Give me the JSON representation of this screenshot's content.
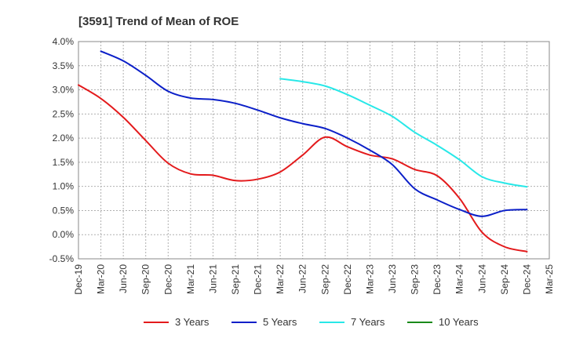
{
  "chart_data": {
    "type": "line",
    "title": "[3591]  Trend of Mean of ROE",
    "xlabel": "",
    "ylabel": "",
    "ylim": [
      -0.5,
      4.0
    ],
    "yticks": [
      -0.5,
      0.0,
      0.5,
      1.0,
      1.5,
      2.0,
      2.5,
      3.0,
      3.5,
      4.0
    ],
    "ytick_labels": [
      "-0.5%",
      "0.0%",
      "0.5%",
      "1.0%",
      "1.5%",
      "2.0%",
      "2.5%",
      "3.0%",
      "3.5%",
      "4.0%"
    ],
    "categories": [
      "Dec-19",
      "Mar-20",
      "Jun-20",
      "Sep-20",
      "Dec-20",
      "Mar-21",
      "Jun-21",
      "Sep-21",
      "Dec-21",
      "Mar-22",
      "Jun-22",
      "Sep-22",
      "Dec-22",
      "Mar-23",
      "Jun-23",
      "Sep-23",
      "Dec-23",
      "Mar-24",
      "Jun-24",
      "Sep-24",
      "Dec-24",
      "Mar-25"
    ],
    "grid": true,
    "legend_position": "bottom",
    "series": [
      {
        "name": "3 Years",
        "color": "#e31a1c",
        "values": [
          3.1,
          2.82,
          2.43,
          1.95,
          1.48,
          1.26,
          1.23,
          1.12,
          1.15,
          1.3,
          1.65,
          2.02,
          1.82,
          1.65,
          1.57,
          1.35,
          1.22,
          0.75,
          0.05,
          -0.25,
          -0.35,
          null
        ]
      },
      {
        "name": "5 Years",
        "color": "#0b1fc8",
        "values": [
          null,
          3.8,
          3.6,
          3.3,
          2.97,
          2.83,
          2.8,
          2.72,
          2.58,
          2.42,
          2.3,
          2.2,
          2.0,
          1.75,
          1.45,
          0.95,
          0.72,
          0.52,
          0.38,
          0.5,
          0.52,
          null
        ]
      },
      {
        "name": "7 Years",
        "color": "#28e8e8",
        "values": [
          null,
          null,
          null,
          null,
          null,
          null,
          null,
          null,
          null,
          3.23,
          3.17,
          3.08,
          2.9,
          2.68,
          2.45,
          2.12,
          1.85,
          1.55,
          1.2,
          1.07,
          0.99,
          null
        ]
      },
      {
        "name": "10 Years",
        "color": "#1a8a1a",
        "values": [
          null,
          null,
          null,
          null,
          null,
          null,
          null,
          null,
          null,
          null,
          null,
          null,
          null,
          null,
          null,
          null,
          null,
          null,
          null,
          null,
          null,
          null
        ]
      }
    ]
  }
}
